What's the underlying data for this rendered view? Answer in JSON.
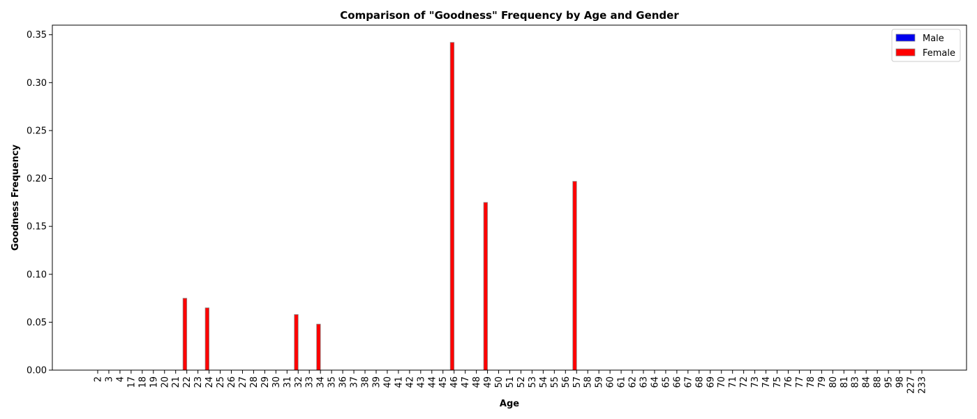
{
  "chart_data": {
    "type": "bar",
    "title": "Comparison of \"Goodness\" Frequency by Age and Gender",
    "xlabel": "Age",
    "ylabel": "Goodness Frequency",
    "ylim": [
      0,
      0.36
    ],
    "yticks": [
      "0.00",
      "0.05",
      "0.10",
      "0.15",
      "0.20",
      "0.25",
      "0.30",
      "0.35"
    ],
    "legend_position": "top-right",
    "grid": false,
    "categories": [
      "2",
      "3",
      "4",
      "17",
      "18",
      "19",
      "20",
      "21",
      "22",
      "23",
      "24",
      "25",
      "26",
      "27",
      "28",
      "29",
      "30",
      "31",
      "32",
      "33",
      "34",
      "35",
      "36",
      "37",
      "38",
      "39",
      "40",
      "41",
      "42",
      "43",
      "44",
      "45",
      "46",
      "47",
      "48",
      "49",
      "50",
      "51",
      "52",
      "53",
      "54",
      "55",
      "56",
      "57",
      "58",
      "59",
      "60",
      "61",
      "62",
      "63",
      "64",
      "65",
      "66",
      "67",
      "68",
      "69",
      "70",
      "71",
      "72",
      "73",
      "74",
      "75",
      "76",
      "77",
      "78",
      "79",
      "80",
      "81",
      "83",
      "84",
      "88",
      "95",
      "98",
      "227",
      "233"
    ],
    "series": [
      {
        "name": "Male",
        "color": "#0000ee",
        "values": [
          0,
          0,
          0,
          0,
          0,
          0,
          0,
          0,
          0,
          0,
          0,
          0,
          0,
          0,
          0,
          0,
          0,
          0,
          0,
          0,
          0,
          0,
          0,
          0,
          0,
          0,
          0,
          0,
          0,
          0,
          0,
          0,
          0,
          0,
          0,
          0,
          0,
          0,
          0,
          0,
          0,
          0,
          0,
          0,
          0,
          0,
          0,
          0,
          0,
          0,
          0,
          0,
          0,
          0,
          0,
          0,
          0,
          0,
          0,
          0,
          0,
          0,
          0,
          0,
          0,
          0,
          0,
          0,
          0,
          0,
          0,
          0,
          0,
          0,
          0
        ]
      },
      {
        "name": "Female",
        "color": "#ff0000",
        "values": [
          0,
          0,
          0,
          0,
          0,
          0,
          0,
          0,
          0.075,
          0,
          0.065,
          0,
          0,
          0,
          0,
          0,
          0,
          0,
          0.058,
          0,
          0.048,
          0,
          0,
          0,
          0,
          0,
          0,
          0,
          0,
          0,
          0,
          0,
          0.342,
          0,
          0,
          0.175,
          0,
          0,
          0,
          0,
          0,
          0,
          0,
          0.197,
          0,
          0,
          0,
          0,
          0,
          0,
          0,
          0,
          0,
          0,
          0,
          0,
          0,
          0,
          0,
          0,
          0,
          0,
          0,
          0,
          0,
          0,
          0,
          0,
          0,
          0,
          0,
          0,
          0,
          0,
          0
        ]
      }
    ]
  }
}
